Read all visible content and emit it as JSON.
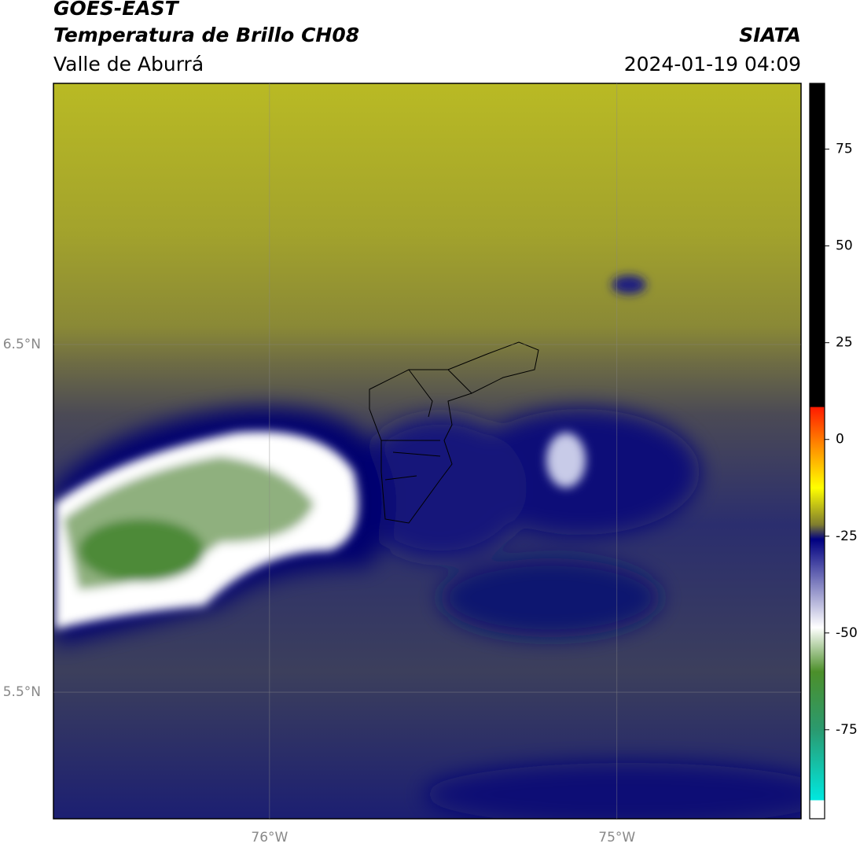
{
  "map": {
    "title": "GOES-EAST",
    "subtitle": "Temperatura de Brillo CH08",
    "region": "Valle de Aburrá",
    "source": "SIATA",
    "datetime": "2024-01-19 04:09",
    "xlim": [
      -76.622,
      -74.47
    ],
    "ylim": [
      5.136,
      7.251
    ],
    "xticks": [
      {
        "value": -76,
        "label": "76°W"
      },
      {
        "value": -75,
        "label": "75°W"
      }
    ],
    "yticks": [
      {
        "value": 6.5,
        "label": "6.5°N"
      },
      {
        "value": 5.5,
        "label": "5.5°N"
      }
    ],
    "colorbar": {
      "lim": [
        -98,
        92
      ],
      "ticks": [
        75,
        50,
        25,
        0,
        -25,
        -50,
        -75
      ]
    }
  }
}
